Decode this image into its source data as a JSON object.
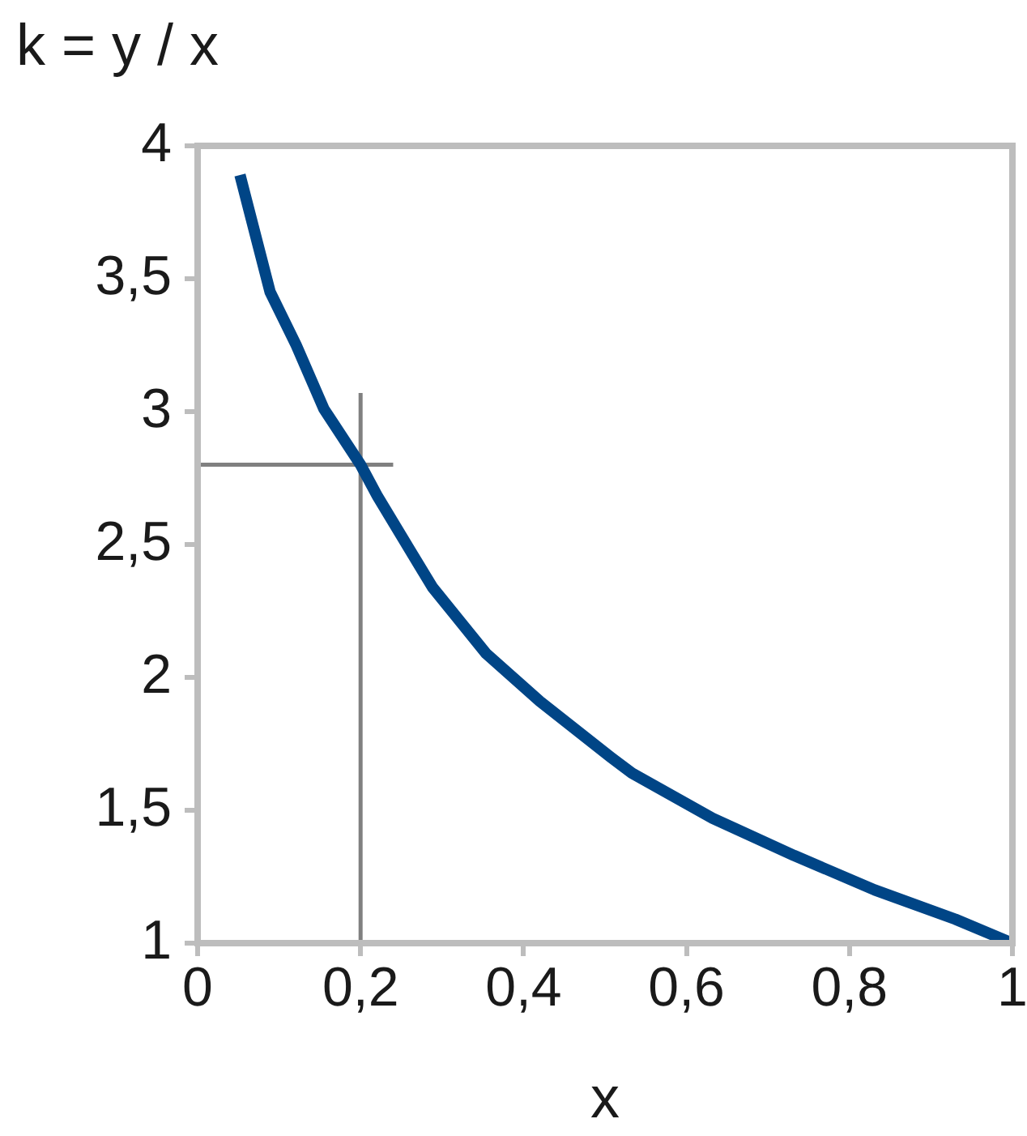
{
  "chart_data": {
    "type": "line",
    "ylabel": "k = y / x",
    "xlabel": "x",
    "xlim": [
      0,
      1
    ],
    "xticks": [
      0,
      {
        "value": 0.2,
        "label": "0,2"
      },
      {
        "value": 0.4,
        "label": "0,4"
      },
      {
        "value": 0.6,
        "label": "0,6"
      },
      {
        "value": 0.8,
        "label": "0,8"
      },
      1
    ],
    "ylim": [
      1,
      4
    ],
    "yticks": [
      1,
      {
        "value": 1.5,
        "label": "1,5"
      },
      2,
      {
        "value": 2.5,
        "label": "2,5"
      },
      3,
      {
        "value": 3.5,
        "label": "3,5"
      },
      4
    ],
    "grid": false,
    "legend": false,
    "marker": "none",
    "line_style": "solid",
    "series": [
      {
        "color": "#004586",
        "x": [
          0.052,
          0.089,
          0.121,
          0.155,
          0.2,
          0.221,
          0.288,
          0.354,
          0.42,
          0.507,
          0.533,
          0.632,
          0.732,
          0.831,
          0.93,
          1
        ],
        "values": [
          3.89,
          3.45,
          3.25,
          3.01,
          2.8,
          2.68,
          2.34,
          2.09,
          1.91,
          1.7,
          1.64,
          1.47,
          1.33,
          1.2,
          1.09,
          1
        ]
      },
      {
        "color": "#808080",
        "x": [
          0.2,
          0.2
        ],
        "values": [
          1,
          3.07
        ]
      },
      {
        "color": "#808080",
        "x": [
          0,
          0.24
        ],
        "values": [
          2.8,
          2.8
        ]
      }
    ]
  }
}
